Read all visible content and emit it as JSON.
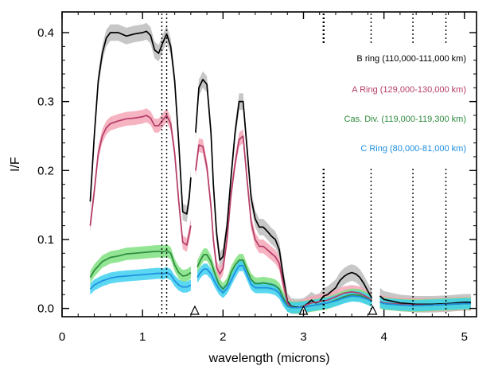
{
  "chart_data": {
    "type": "line",
    "xlabel": "wavelength (microns)",
    "ylabel": "I/F",
    "xlim": [
      0,
      5.15
    ],
    "ylim": [
      -0.012,
      0.43
    ],
    "xticks": [
      0,
      1,
      2,
      3,
      4,
      5
    ],
    "xtick_labels": [
      "0",
      "1",
      "2",
      "3",
      "4",
      "5"
    ],
    "yticks": [
      0.0,
      0.1,
      0.2,
      0.3,
      0.4
    ],
    "ytick_labels": [
      "0.0",
      "0.1",
      "0.2",
      "0.3",
      "0.4"
    ],
    "grid": false,
    "legend_position": "right",
    "series": [
      {
        "name": "B ring (110,000-111,000 km)",
        "color": "#000000",
        "band_color": "#bdbdbd",
        "x": [
          0.35,
          0.4,
          0.45,
          0.5,
          0.55,
          0.6,
          0.7,
          0.8,
          0.9,
          1.0,
          1.05,
          1.1,
          1.15,
          1.2,
          1.25,
          1.3,
          1.35,
          1.4,
          1.45,
          1.5,
          1.55,
          1.58,
          1.6,
          1.62,
          1.66,
          1.7,
          1.75,
          1.8,
          1.85,
          1.88,
          1.92,
          1.96,
          2.0,
          2.05,
          2.1,
          2.15,
          2.2,
          2.25,
          2.3,
          2.35,
          2.4,
          2.45,
          2.5,
          2.55,
          2.6,
          2.65,
          2.7,
          2.75,
          2.8,
          2.85,
          2.9,
          2.95,
          3.0,
          3.05,
          3.1,
          3.15,
          3.2,
          3.25,
          3.3,
          3.35,
          3.4,
          3.45,
          3.5,
          3.55,
          3.6,
          3.65,
          3.7,
          3.75,
          3.8,
          3.85,
          3.9,
          3.95,
          4.0,
          4.2,
          4.4,
          4.6,
          4.8,
          5.0,
          5.08
        ],
        "y": [
          0.155,
          0.25,
          0.33,
          0.37,
          0.392,
          0.4,
          0.4,
          0.395,
          0.398,
          0.4,
          0.402,
          0.396,
          0.375,
          0.37,
          0.385,
          0.398,
          0.38,
          0.33,
          0.24,
          0.14,
          0.137,
          0.16,
          0.19,
          null,
          0.255,
          0.32,
          0.332,
          0.325,
          0.255,
          0.18,
          0.11,
          0.07,
          0.075,
          0.12,
          0.19,
          0.255,
          0.3,
          0.3,
          0.23,
          0.16,
          0.13,
          0.118,
          0.118,
          0.112,
          0.105,
          0.1,
          0.085,
          0.045,
          0.01,
          0.003,
          0.002,
          0.002,
          0.003,
          0.007,
          0.012,
          0.008,
          0.01,
          0.018,
          0.02,
          0.025,
          0.03,
          0.04,
          0.046,
          0.05,
          0.052,
          0.05,
          0.045,
          0.036,
          0.025,
          0.015,
          null,
          0.018,
          0.013,
          0.008,
          0.006,
          0.006,
          0.007,
          0.009,
          0.009
        ],
        "band": 0.012
      },
      {
        "name": "A Ring (129,000-130,000 km)",
        "color": "#b43c68",
        "band_color": "#f4a6b6",
        "x": [
          0.35,
          0.4,
          0.45,
          0.5,
          0.55,
          0.6,
          0.7,
          0.8,
          0.9,
          1.0,
          1.05,
          1.1,
          1.15,
          1.2,
          1.25,
          1.3,
          1.35,
          1.4,
          1.45,
          1.5,
          1.55,
          1.58,
          1.6,
          1.62,
          1.66,
          1.7,
          1.75,
          1.8,
          1.85,
          1.88,
          1.92,
          1.96,
          2.0,
          2.05,
          2.1,
          2.15,
          2.2,
          2.25,
          2.3,
          2.35,
          2.4,
          2.45,
          2.5,
          2.55,
          2.6,
          2.65,
          2.7,
          2.75,
          2.8,
          2.85,
          2.9,
          2.95,
          3.0,
          3.05,
          3.1,
          3.2,
          3.3,
          3.4,
          3.5,
          3.6,
          3.7,
          3.8,
          3.85,
          3.9,
          3.95,
          4.0,
          4.2,
          4.4,
          4.6,
          4.8,
          5.0,
          5.08
        ],
        "y": [
          0.12,
          0.17,
          0.225,
          0.25,
          0.262,
          0.268,
          0.272,
          0.275,
          0.276,
          0.278,
          0.28,
          0.276,
          0.265,
          0.265,
          0.273,
          0.28,
          0.268,
          0.225,
          0.155,
          0.096,
          0.092,
          0.108,
          0.12,
          null,
          0.2,
          0.237,
          0.235,
          0.205,
          0.148,
          0.1,
          0.06,
          0.05,
          0.058,
          0.1,
          0.165,
          0.21,
          0.245,
          0.25,
          0.185,
          0.125,
          0.1,
          0.09,
          0.09,
          0.085,
          0.08,
          0.075,
          0.065,
          0.035,
          0.008,
          0.002,
          0.001,
          0.002,
          0.003,
          0.006,
          0.008,
          0.01,
          0.012,
          0.017,
          0.022,
          0.024,
          0.022,
          0.016,
          0.012,
          null,
          0.01,
          0.008,
          0.006,
          0.005,
          0.005,
          0.006,
          0.007,
          0.007
        ],
        "band": 0.01
      },
      {
        "name": "Cas. Div. (119,000-119,300 km)",
        "color": "#2e8b3e",
        "band_color": "#7fe07f",
        "x": [
          0.35,
          0.4,
          0.5,
          0.6,
          0.7,
          0.8,
          0.9,
          1.0,
          1.1,
          1.2,
          1.25,
          1.3,
          1.35,
          1.4,
          1.45,
          1.5,
          1.55,
          1.6,
          1.63,
          1.68,
          1.72,
          1.76,
          1.8,
          1.85,
          1.9,
          1.95,
          2.0,
          2.05,
          2.1,
          2.15,
          2.2,
          2.25,
          2.3,
          2.35,
          2.4,
          2.45,
          2.5,
          2.55,
          2.6,
          2.65,
          2.7,
          2.75,
          2.8,
          2.85,
          2.9,
          3.0,
          3.1,
          3.2,
          3.3,
          3.4,
          3.5,
          3.6,
          3.7,
          3.8,
          3.85,
          3.9,
          3.95,
          4.0,
          4.2,
          4.4,
          4.6,
          4.8,
          5.0,
          5.08
        ],
        "y": [
          0.045,
          0.055,
          0.068,
          0.074,
          0.076,
          0.079,
          0.08,
          0.081,
          0.082,
          0.083,
          0.082,
          0.084,
          0.08,
          0.063,
          0.052,
          0.047,
          0.048,
          0.052,
          null,
          0.06,
          0.07,
          0.078,
          0.078,
          0.068,
          0.05,
          0.035,
          0.028,
          0.035,
          0.052,
          0.063,
          0.07,
          0.07,
          0.055,
          0.042,
          0.036,
          0.036,
          0.037,
          0.036,
          0.035,
          0.033,
          0.028,
          0.015,
          0.004,
          0.002,
          0.001,
          0.002,
          0.004,
          0.006,
          0.008,
          0.012,
          0.017,
          0.02,
          0.019,
          0.014,
          0.011,
          null,
          0.009,
          0.007,
          0.005,
          0.004,
          0.005,
          0.006,
          0.007,
          0.007
        ],
        "band": 0.009
      },
      {
        "name": "C Ring (80,000-81,000 km)",
        "color": "#1f8fe0",
        "band_color": "#3fd0f0",
        "x": [
          0.35,
          0.4,
          0.5,
          0.6,
          0.7,
          0.8,
          0.9,
          1.0,
          1.1,
          1.2,
          1.25,
          1.3,
          1.35,
          1.4,
          1.45,
          1.5,
          1.55,
          1.6,
          1.63,
          1.68,
          1.72,
          1.76,
          1.8,
          1.85,
          1.9,
          1.95,
          2.0,
          2.05,
          2.1,
          2.15,
          2.2,
          2.25,
          2.3,
          2.35,
          2.4,
          2.45,
          2.5,
          2.55,
          2.6,
          2.65,
          2.7,
          2.75,
          2.8,
          2.85,
          2.9,
          3.0,
          3.1,
          3.2,
          3.3,
          3.4,
          3.5,
          3.6,
          3.7,
          3.8,
          3.85,
          3.9,
          3.95,
          4.0,
          4.2,
          4.4,
          4.6,
          4.8,
          5.0,
          5.08
        ],
        "y": [
          0.028,
          0.034,
          0.04,
          0.044,
          0.046,
          0.047,
          0.048,
          0.049,
          0.05,
          0.051,
          0.05,
          0.052,
          0.049,
          0.04,
          0.034,
          0.031,
          0.031,
          0.034,
          null,
          0.045,
          0.052,
          0.057,
          0.057,
          0.05,
          0.038,
          0.028,
          0.023,
          0.029,
          0.04,
          0.052,
          0.062,
          0.062,
          0.048,
          0.035,
          0.03,
          0.03,
          0.03,
          0.03,
          0.029,
          0.027,
          0.022,
          0.011,
          0.003,
          0.001,
          0.001,
          0.002,
          0.004,
          0.006,
          0.008,
          0.011,
          0.015,
          0.018,
          0.017,
          0.013,
          0.01,
          null,
          0.009,
          0.007,
          0.005,
          0.004,
          0.005,
          0.006,
          0.007,
          0.007
        ],
        "band": 0.008
      }
    ],
    "vertical_dotted_lines": [
      1.24,
      1.3,
      3.25,
      3.84,
      4.36,
      4.77
    ],
    "upper_marker_lines": [
      3.25,
      3.84,
      4.36,
      4.77
    ],
    "triangle_markers": [
      1.65,
      3.0,
      3.86
    ]
  }
}
